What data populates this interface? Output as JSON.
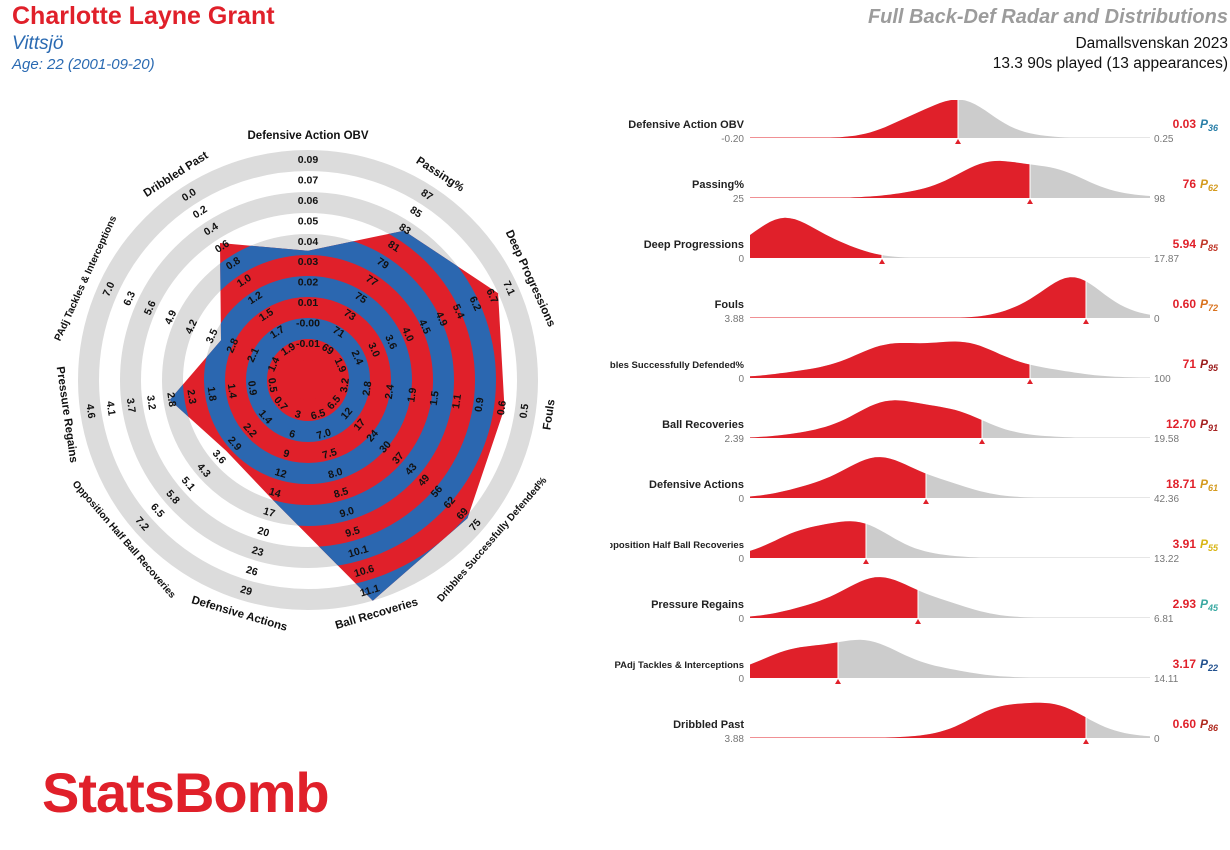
{
  "header": {
    "player_name": "Charlotte Layne Grant",
    "team": "Vittsjö",
    "age": "Age: 22 (2001-09-20)",
    "title": "Full Back-Def Radar and Distributions",
    "competition": "Damallsvenskan 2023",
    "minutes": "13.3 90s played (13 appearances)"
  },
  "logo": {
    "text": "StatsBomb"
  },
  "colors": {
    "red": "#e0202a",
    "blue": "#2b67b0",
    "grey": "#dcdcdc",
    "dist_grey": "#cccccc"
  },
  "chart_data": [
    {
      "type": "radar",
      "axes": [
        {
          "label": "Defensive Action OBV",
          "ticks": [
            "-0.01",
            "-0.00",
            "0.01",
            "0.02",
            "0.03",
            "0.04",
            "0.05",
            "0.06",
            "0.07",
            "0.09"
          ],
          "value": 0.03,
          "fraction": 0.52
        },
        {
          "label": "Passing%",
          "ticks": [
            "69",
            "71",
            "73",
            "75",
            "77",
            "79",
            "81",
            "83",
            "85",
            "87"
          ],
          "value": 76,
          "fraction": 0.75
        },
        {
          "label": "Deep Progressions",
          "ticks": [
            "1.9",
            "2.4",
            "3.0",
            "3.6",
            "4.0",
            "4.5",
            "4.9",
            "5.4",
            "6.2",
            "6.7",
            "7.1"
          ],
          "value": 5.94,
          "fraction": 0.9
        },
        {
          "label": "Fouls",
          "ticks": [
            "3.2",
            "2.8",
            "2.4",
            "1.9",
            "1.5",
            "1.1",
            "0.9",
            "0.6",
            "0.5"
          ],
          "value": 0.6,
          "fraction": 0.85
        },
        {
          "label": "Dribbles Successfully Defended%",
          "ticks": [
            "6.5",
            "12",
            "17",
            "24",
            "30",
            "37",
            "43",
            "49",
            "56",
            "62",
            "69",
            "75"
          ],
          "value": 71,
          "fraction": 0.91
        },
        {
          "label": "Ball Recoveries",
          "ticks": [
            "6.5",
            "7.0",
            "7.5",
            "8.0",
            "8.5",
            "9.0",
            "9.5",
            "10.1",
            "10.6",
            "11.1"
          ],
          "value": 12.7,
          "fraction": 1.0
        },
        {
          "label": "Defensive Actions",
          "ticks": [
            "3",
            "6",
            "9",
            "12",
            "14",
            "17",
            "20",
            "23",
            "26",
            "29"
          ],
          "value": 18.71,
          "fraction": 0.5
        },
        {
          "label": "Opposition Half Ball Recoveries",
          "ticks": [
            "0.7",
            "1.4",
            "2.2",
            "2.9",
            "3.6",
            "4.3",
            "5.1",
            "5.8",
            "6.5",
            "7.2"
          ],
          "value": 3.91,
          "fraction": 0.42
        },
        {
          "label": "Pressure Regains",
          "ticks": [
            "0.5",
            "0.9",
            "1.4",
            "1.8",
            "2.3",
            "2.8",
            "3.2",
            "3.7",
            "4.1",
            "4.6"
          ],
          "value": 2.93,
          "fraction": 0.57
        },
        {
          "label": "PAdj Tackles & Interceptions",
          "ticks": [
            "1.4",
            "2.1",
            "2.8",
            "3.5",
            "4.2",
            "4.9",
            "5.6",
            "6.3",
            "7.0"
          ],
          "value": 3.17,
          "fraction": 0.36
        },
        {
          "label": "Dribbled Past",
          "ticks": [
            "1.9",
            "1.7",
            "1.5",
            "1.2",
            "1.0",
            "0.8",
            "0.6",
            "0.4",
            "0.2",
            "0.0"
          ],
          "value": 0.6,
          "fraction": 0.68
        }
      ]
    },
    {
      "type": "area",
      "rows": [
        {
          "label": "Defensive Action OBV",
          "min": "-0.20",
          "max": "0.25",
          "value": "0.03",
          "percentile": "36",
          "pct_color": "#2a7fa8",
          "label_small": false
        },
        {
          "label": "Passing%",
          "min": "25",
          "max": "98",
          "value": "76",
          "percentile": "62",
          "pct_color": "#d49a1f",
          "label_small": false
        },
        {
          "label": "Deep Progressions",
          "min": "0",
          "max": "17.87",
          "value": "5.94",
          "percentile": "85",
          "pct_color": "#c0392b",
          "label_small": false
        },
        {
          "label": "Fouls",
          "min": "3.88",
          "max": "0",
          "value": "0.60",
          "percentile": "72",
          "pct_color": "#d9731f",
          "label_small": false
        },
        {
          "label": "Dribbles Successfully Defended%",
          "min": "0",
          "max": "100",
          "value": "71",
          "percentile": "95",
          "pct_color": "#9b1c1c",
          "label_small": true
        },
        {
          "label": "Ball Recoveries",
          "min": "2.39",
          "max": "19.58",
          "value": "12.70",
          "percentile": "91",
          "pct_color": "#a52222",
          "label_small": false
        },
        {
          "label": "Defensive Actions",
          "min": "0",
          "max": "42.36",
          "value": "18.71",
          "percentile": "61",
          "pct_color": "#d49a1f",
          "label_small": false
        },
        {
          "label": "Opposition Half Ball Recoveries",
          "min": "0",
          "max": "13.22",
          "value": "3.91",
          "percentile": "55",
          "pct_color": "#d8b516",
          "label_small": true
        },
        {
          "label": "Pressure Regains",
          "min": "0",
          "max": "6.81",
          "value": "2.93",
          "percentile": "45",
          "pct_color": "#3aa9a2",
          "label_small": false
        },
        {
          "label": "PAdj Tackles & Interceptions",
          "min": "0",
          "max": "14.11",
          "value": "3.17",
          "percentile": "22",
          "pct_color": "#23528f",
          "label_small": true
        },
        {
          "label": "Dribbled Past",
          "min": "3.88",
          "max": "0",
          "value": "0.60",
          "percentile": "86",
          "pct_color": "#b02a1f",
          "label_small": false
        }
      ]
    }
  ]
}
